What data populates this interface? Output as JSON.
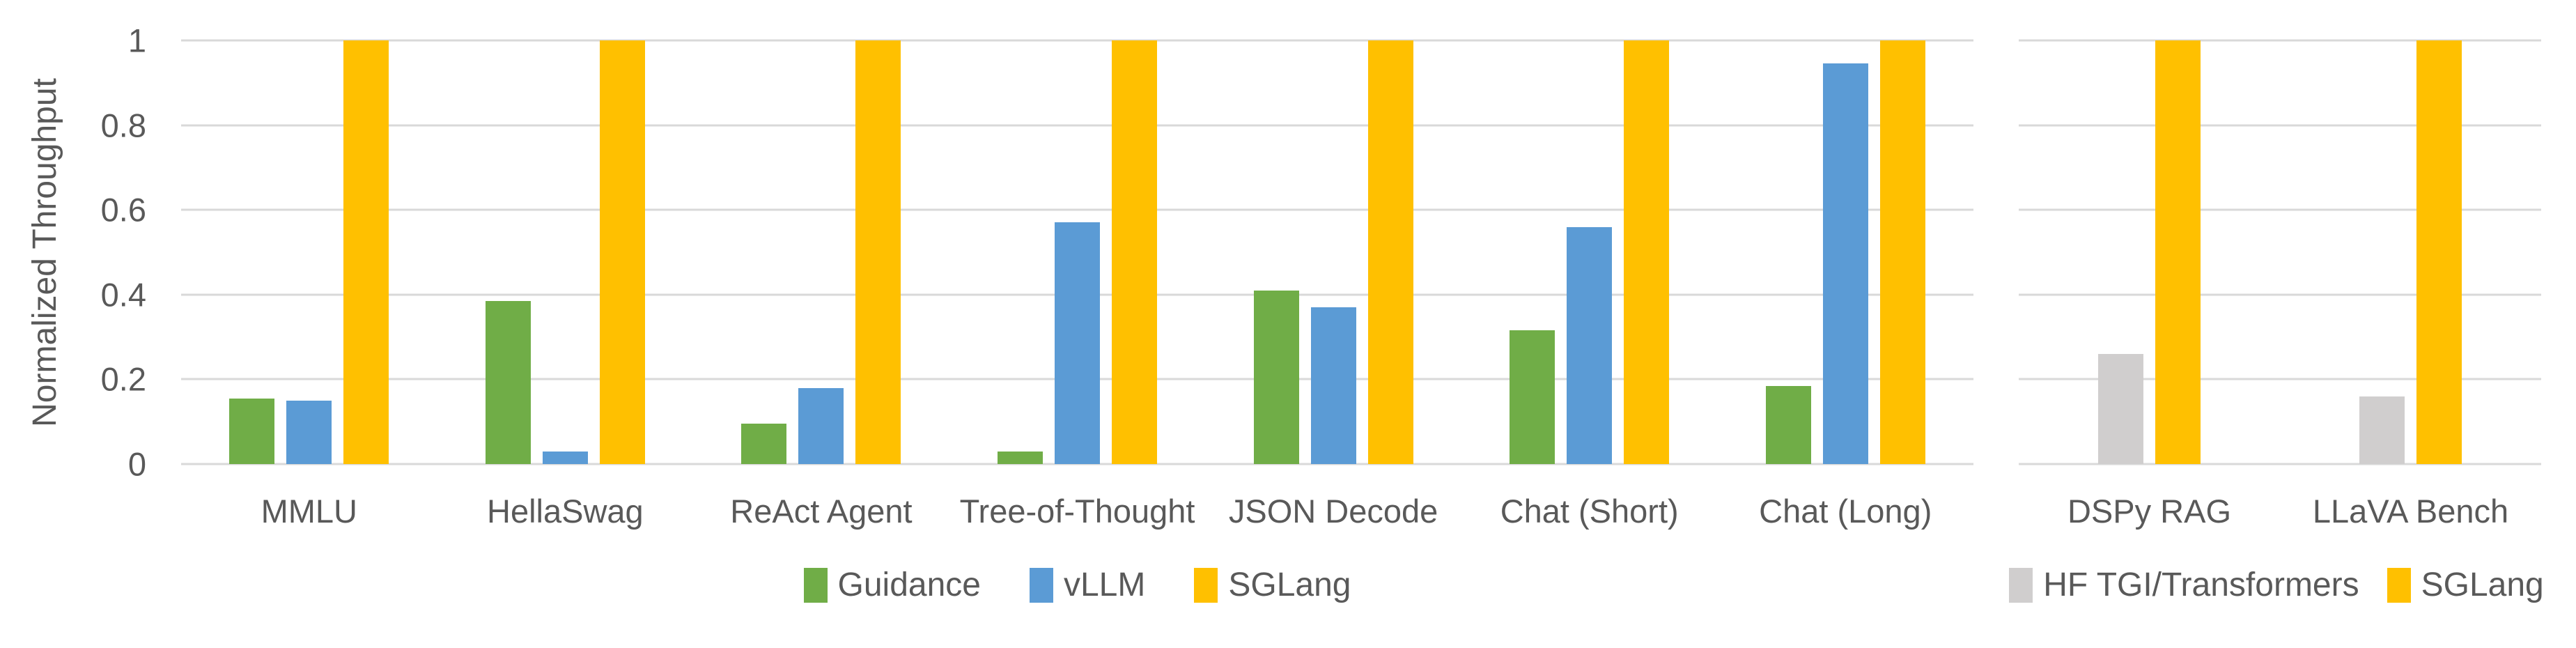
{
  "figure": {
    "y_axis_title": "Normalized Throughput",
    "y_tick_labels": [
      "1",
      "0.8",
      "0.6",
      "0.4",
      "0.2",
      "0"
    ],
    "colors": {
      "guidance_green": "#70AD47",
      "vllm_blue": "#5B9BD5",
      "sglang_yellow": "#FFC000",
      "hf_gray": "#D0CECE",
      "gridline": "#D9D9D9",
      "text": "#595959",
      "background": "#FFFFFF"
    }
  },
  "chart_data": [
    {
      "type": "bar",
      "title": "",
      "xlabel": "",
      "ylabel": "Normalized Throughput",
      "ylim": [
        0,
        1
      ],
      "yticks": [
        1,
        0.8,
        0.6,
        0.4,
        0.2,
        0
      ],
      "grid": true,
      "legend_position": "bottom",
      "categories": [
        "MMLU",
        "HellaSwag",
        "ReAct Agent",
        "Tree-of-Thought",
        "JSON Decode",
        "Chat (Short)",
        "Chat (Long)"
      ],
      "series": [
        {
          "name": "Guidance",
          "color": "#70AD47",
          "values": [
            0.155,
            0.385,
            0.095,
            0.03,
            0.41,
            0.315,
            0.185
          ]
        },
        {
          "name": "vLLM",
          "color": "#5B9BD5",
          "values": [
            0.15,
            0.03,
            0.18,
            0.57,
            0.37,
            0.56,
            0.945
          ]
        },
        {
          "name": "SGLang",
          "color": "#FFC000",
          "values": [
            1,
            1,
            1,
            1,
            1,
            1,
            1
          ]
        }
      ]
    },
    {
      "type": "bar",
      "title": "",
      "xlabel": "",
      "ylabel": "",
      "ylim": [
        0,
        1
      ],
      "yticks": [],
      "grid": true,
      "legend_position": "bottom",
      "categories": [
        "DSPy RAG",
        "LLaVA Bench"
      ],
      "series": [
        {
          "name": "HF TGI/Transformers",
          "color": "#D0CECE",
          "values": [
            0.26,
            0.16
          ]
        },
        {
          "name": "SGLang",
          "color": "#FFC000",
          "values": [
            1,
            1
          ]
        }
      ]
    }
  ]
}
